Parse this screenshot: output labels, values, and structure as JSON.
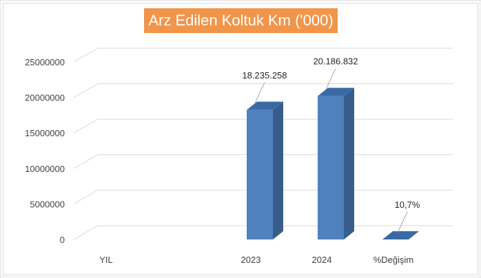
{
  "chart_data": {
    "type": "bar",
    "title": "Arz Edilen Koltuk Km ('000)",
    "categories": [
      "YIL",
      "2023",
      "2024",
      "%Değişim"
    ],
    "values": [
      0,
      18235258,
      20186832,
      10.7
    ],
    "data_labels": [
      "",
      "18.235.258",
      "20.186.832",
      "10,7%"
    ],
    "y_ticks": [
      "0",
      "5000000",
      "10000000",
      "15000000",
      "20000000",
      "25000000"
    ],
    "y_tick_values": [
      0,
      5000000,
      10000000,
      15000000,
      20000000,
      25000000
    ],
    "ylim": [
      0,
      25000000
    ],
    "xlabel": "",
    "ylabel": "",
    "grid": true,
    "legend": "none",
    "bar_color": "#4f81bd",
    "bar_side_color": "#385d8a",
    "bar_top_color": "#3a6aa5",
    "title_bg_color": "#f0954a",
    "title_text_color": "#ffffff"
  }
}
